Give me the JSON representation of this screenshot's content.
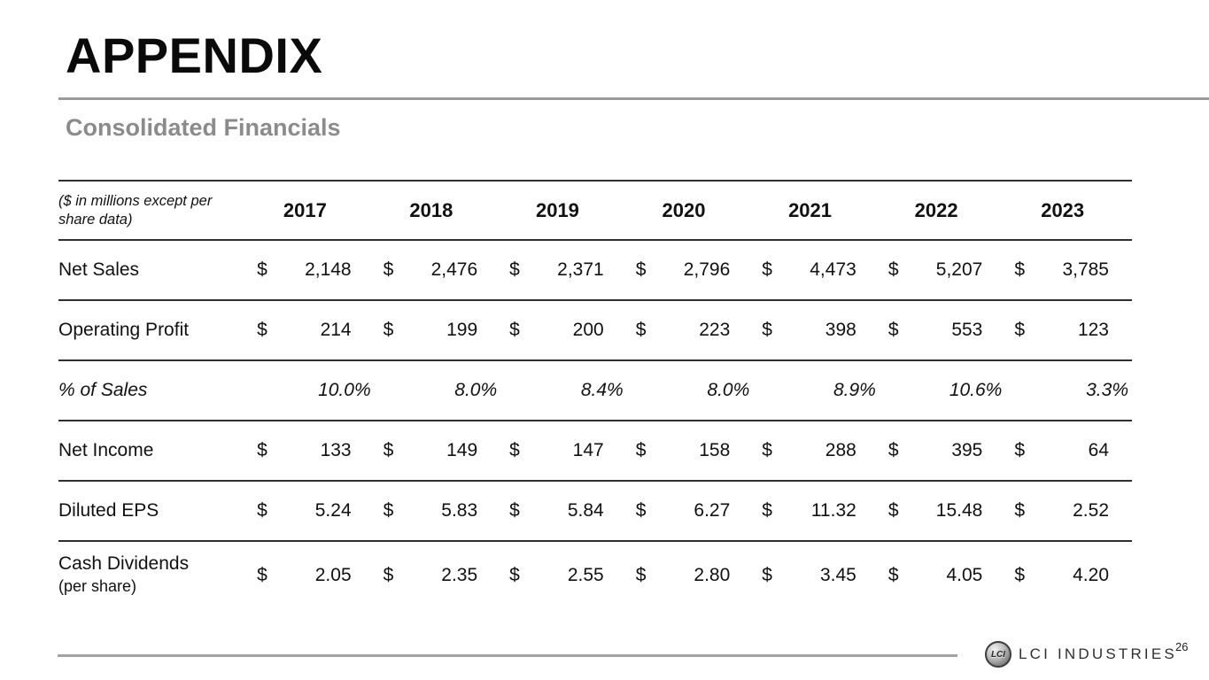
{
  "slide": {
    "title": "APPENDIX",
    "subtitle": "Consolidated Financials",
    "page_number": "26",
    "brand": "LCI INDUSTRIES",
    "logo_monogram": "LCI"
  },
  "colors": {
    "text": "#111111",
    "subtitle_gray": "#8b8b8b",
    "title_rule_gray": "#9b9b9b",
    "table_border": "#2f2f2f",
    "footer_line_gray": "#a3a3a3",
    "brand_text": "#2f2f2f"
  },
  "table": {
    "unit_note": "($ in millions except per share data)",
    "currency_symbol": "$",
    "years": [
      "2017",
      "2018",
      "2019",
      "2020",
      "2021",
      "2022",
      "2023"
    ],
    "rows": [
      {
        "label": "Net Sales",
        "currency": true,
        "italic": false,
        "values": [
          "2,148",
          "2,476",
          "2,371",
          "2,796",
          "4,473",
          "5,207",
          "3,785"
        ]
      },
      {
        "label": "Operating Profit",
        "currency": true,
        "italic": false,
        "values": [
          "214",
          "199",
          "200",
          "223",
          "398",
          "553",
          "123"
        ]
      },
      {
        "label": "% of Sales",
        "currency": false,
        "italic": true,
        "values": [
          "10.0%",
          "8.0%",
          "8.4%",
          "8.0%",
          "8.9%",
          "10.6%",
          "3.3%"
        ]
      },
      {
        "label": "Net Income",
        "currency": true,
        "italic": false,
        "values": [
          "133",
          "149",
          "147",
          "158",
          "288",
          "395",
          "64"
        ]
      },
      {
        "label": "Diluted EPS",
        "currency": true,
        "italic": false,
        "values": [
          "5.24",
          "5.83",
          "5.84",
          "6.27",
          "11.32",
          "15.48",
          "2.52"
        ]
      },
      {
        "label": "Cash Dividends",
        "sublabel": "(per share)",
        "currency": true,
        "italic": false,
        "values": [
          "2.05",
          "2.35",
          "2.55",
          "2.80",
          "3.45",
          "4.05",
          "4.20"
        ]
      }
    ]
  }
}
